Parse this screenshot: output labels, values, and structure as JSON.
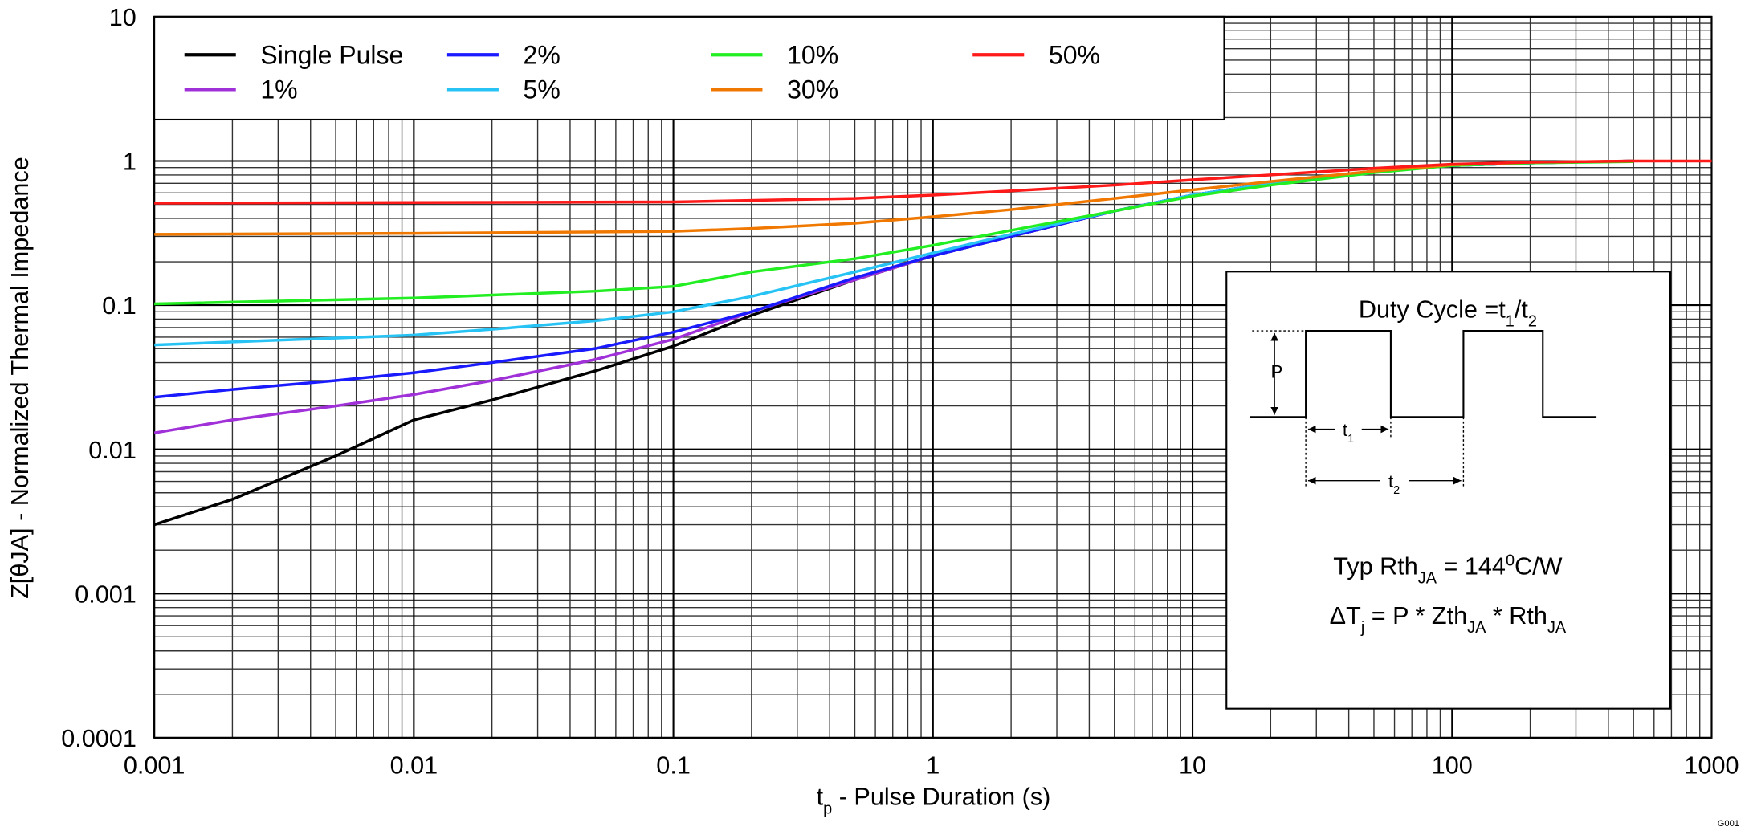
{
  "chart_data": {
    "type": "line",
    "x_label": [
      {
        "text": "t"
      },
      {
        "text": "p",
        "shift": "sub"
      },
      {
        "text": " - Pulse Duration (s)"
      }
    ],
    "y_label": "Z[θJA] - Normalized Thermal Impedance",
    "xlim": [
      0.001,
      1000
    ],
    "ylim": [
      0.0001,
      10
    ],
    "xticks": [
      0.001,
      0.01,
      0.1,
      1,
      10,
      100,
      1000
    ],
    "yticks": [
      0.0001,
      0.001,
      0.01,
      0.1,
      1,
      10
    ],
    "log_x": true,
    "log_y": true,
    "grid": true,
    "minor_grid": true,
    "legend": "upper left",
    "series": [
      {
        "name": "Single Pulse",
        "color": "#000000",
        "x": [
          0.001,
          0.002,
          0.005,
          0.01,
          0.02,
          0.05,
          0.1,
          0.2,
          0.5,
          1,
          2,
          5,
          10,
          20,
          50,
          100,
          200,
          500
        ],
        "values": [
          0.003,
          0.0045,
          0.009,
          0.016,
          0.022,
          0.035,
          0.052,
          0.085,
          0.15,
          0.22,
          0.3,
          0.45,
          0.58,
          0.7,
          0.85,
          0.93,
          0.97,
          1
        ]
      },
      {
        "name": "1%",
        "color": "#a030d8",
        "x": [
          0.001,
          0.002,
          0.005,
          0.01,
          0.02,
          0.05,
          0.1,
          0.2,
          0.5,
          1,
          2,
          5,
          10,
          20,
          50,
          100,
          200,
          500
        ],
        "values": [
          0.013,
          0.016,
          0.02,
          0.024,
          0.03,
          0.042,
          0.058,
          0.09,
          0.15,
          0.22,
          0.3,
          0.45,
          0.58,
          0.7,
          0.85,
          0.93,
          0.97,
          1
        ]
      },
      {
        "name": "2%",
        "color": "#1a1aff",
        "x": [
          0.001,
          0.002,
          0.005,
          0.01,
          0.02,
          0.05,
          0.1,
          0.2,
          0.5,
          1,
          2,
          5,
          10,
          20,
          50,
          100,
          200,
          500
        ],
        "values": [
          0.023,
          0.026,
          0.03,
          0.034,
          0.04,
          0.05,
          0.065,
          0.09,
          0.155,
          0.22,
          0.3,
          0.45,
          0.58,
          0.7,
          0.85,
          0.93,
          0.97,
          1
        ]
      },
      {
        "name": "5%",
        "color": "#27c3f5",
        "x": [
          0.001,
          0.01,
          0.02,
          0.05,
          0.1,
          0.2,
          0.5,
          1,
          2,
          5,
          10,
          20,
          50,
          100,
          200,
          500
        ],
        "values": [
          0.053,
          0.062,
          0.068,
          0.078,
          0.09,
          0.115,
          0.17,
          0.23,
          0.31,
          0.45,
          0.58,
          0.7,
          0.85,
          0.93,
          0.97,
          1
        ]
      },
      {
        "name": "10%",
        "color": "#22ee22",
        "x": [
          0.001,
          0.01,
          0.05,
          0.1,
          0.2,
          0.5,
          1,
          2,
          5,
          10,
          20,
          50,
          100,
          200,
          500
        ],
        "values": [
          0.102,
          0.112,
          0.125,
          0.135,
          0.17,
          0.21,
          0.26,
          0.33,
          0.45,
          0.57,
          0.68,
          0.83,
          0.93,
          0.97,
          0.99
        ]
      },
      {
        "name": "30%",
        "color": "#f07800",
        "x": [
          0.001,
          0.01,
          0.1,
          0.2,
          0.5,
          1,
          2,
          5,
          10,
          20,
          50,
          100,
          200,
          500
        ],
        "values": [
          0.31,
          0.315,
          0.325,
          0.34,
          0.37,
          0.41,
          0.46,
          0.55,
          0.63,
          0.72,
          0.85,
          0.94,
          0.98,
          1
        ]
      },
      {
        "name": "50%",
        "color": "#ff1a1a",
        "x": [
          0.001,
          0.01,
          0.1,
          0.5,
          1,
          2,
          5,
          10,
          20,
          50,
          100,
          200,
          500,
          1000
        ],
        "values": [
          0.51,
          0.515,
          0.52,
          0.55,
          0.58,
          0.62,
          0.68,
          0.74,
          0.8,
          0.89,
          0.95,
          0.98,
          1,
          1
        ]
      }
    ],
    "inset": {
      "title": [
        {
          "text": "Duty Cycle =t"
        },
        {
          "text": "1",
          "shift": "sub"
        },
        {
          "text": "/t"
        },
        {
          "text": "2",
          "shift": "sub"
        }
      ],
      "p_label": "P",
      "t1_label": [
        {
          "text": "t"
        },
        {
          "text": "1",
          "shift": "sub"
        }
      ],
      "t2_label": [
        {
          "text": "t"
        },
        {
          "text": "2",
          "shift": "sub"
        }
      ],
      "rth": [
        {
          "text": "Typ Rth"
        },
        {
          "text": "JA",
          "shift": "sub"
        },
        {
          "text": " = 144"
        },
        {
          "text": "0",
          "shift": "super"
        },
        {
          "text": "C/W"
        }
      ],
      "delta": [
        {
          "text": "ΔT"
        },
        {
          "text": "j",
          "shift": "sub"
        },
        {
          "text": " = P * Zth"
        },
        {
          "text": "JA",
          "shift": "sub"
        },
        {
          "text": " * Rth"
        },
        {
          "text": "JA",
          "shift": "sub"
        }
      ]
    },
    "figure_id": "G001"
  }
}
